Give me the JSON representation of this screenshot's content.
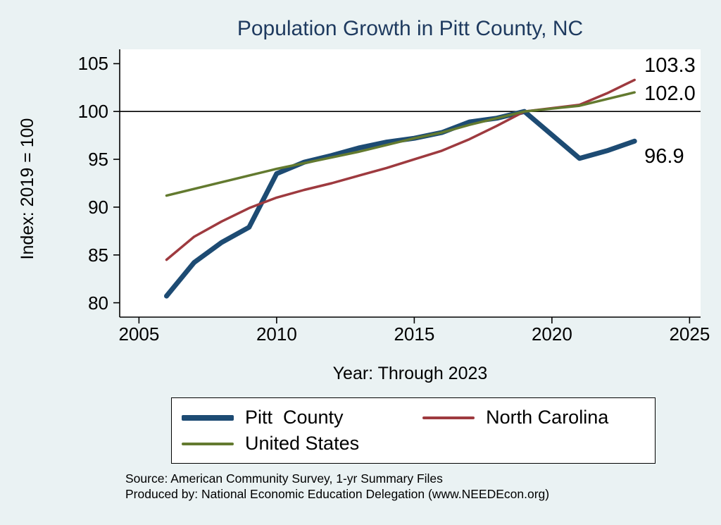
{
  "title": "Population Growth in Pitt County, NC",
  "axes": {
    "y_label": "Index: 2019 = 100",
    "x_label": "Year: Through 2023"
  },
  "source": {
    "line1": "Source: American Community Survey, 1-yr Summary Files",
    "line2": "Produced by: National Economic Education Delegation (www.NEEDEcon.org)"
  },
  "colors": {
    "background": "#eaf2f3",
    "plot_background": "#ffffff",
    "title": "#1e3a5f",
    "reference_line": "#000000",
    "pitt_county": "#1d4b73",
    "north_carolina": "#9e3a3f",
    "united_states": "#637a2f"
  },
  "chart_data": {
    "type": "line",
    "title": "Population Growth in Pitt County, NC",
    "xlabel": "Year: Through 2023",
    "ylabel": "Index: 2019 = 100",
    "x_ticks": [
      2005,
      2010,
      2015,
      2020,
      2025
    ],
    "y_ticks": [
      80,
      85,
      90,
      95,
      100,
      105
    ],
    "xlim": [
      2004.3,
      2025.4
    ],
    "ylim": [
      78.5,
      106.5
    ],
    "grid": false,
    "legend_position": "bottom",
    "reference_line_y": 100,
    "note": "2020 data point absent; lines connect 2019 directly to 2021",
    "series": [
      {
        "name": "Pitt  County",
        "color": "#1d4b73",
        "line_width": 7,
        "x": [
          2006,
          2007,
          2008,
          2009,
          2010,
          2011,
          2012,
          2013,
          2014,
          2015,
          2016,
          2017,
          2018,
          2019,
          2021,
          2022,
          2023
        ],
        "values": [
          80.7,
          84.2,
          86.3,
          87.9,
          93.5,
          94.7,
          95.4,
          96.2,
          96.8,
          97.2,
          97.8,
          98.9,
          99.3,
          100.0,
          95.1,
          95.9,
          96.9
        ],
        "end_label": "96.9"
      },
      {
        "name": "North Carolina",
        "color": "#9e3a3f",
        "line_width": 3.5,
        "x": [
          2006,
          2007,
          2008,
          2009,
          2010,
          2011,
          2012,
          2013,
          2014,
          2015,
          2016,
          2017,
          2018,
          2019,
          2021,
          2022,
          2023
        ],
        "values": [
          84.5,
          86.9,
          88.5,
          89.9,
          91.0,
          91.8,
          92.5,
          93.3,
          94.1,
          95.0,
          95.9,
          97.1,
          98.5,
          100.0,
          100.7,
          101.9,
          103.3
        ],
        "end_label": "103.3"
      },
      {
        "name": "United States",
        "color": "#637a2f",
        "line_width": 3.5,
        "x": [
          2006,
          2007,
          2008,
          2009,
          2010,
          2011,
          2012,
          2013,
          2014,
          2015,
          2016,
          2017,
          2018,
          2019,
          2021,
          2022,
          2023
        ],
        "values": [
          91.2,
          91.9,
          92.6,
          93.3,
          94.0,
          94.6,
          95.2,
          95.8,
          96.5,
          97.2,
          97.8,
          98.6,
          99.3,
          100.0,
          100.6,
          101.3,
          102.0
        ],
        "end_label": "102.0"
      }
    ]
  }
}
